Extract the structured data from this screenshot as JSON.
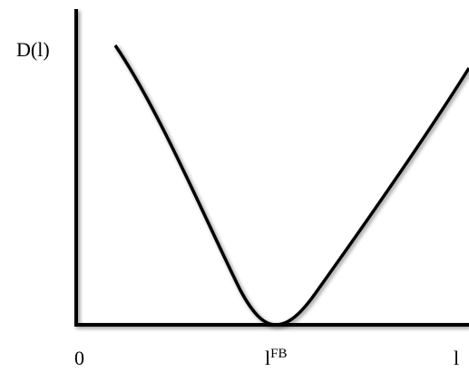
{
  "y_axis": {
    "label": "D(l)"
  },
  "x_axis": {
    "origin_label": "0",
    "end_label": "l",
    "marked_point": {
      "base": "l",
      "superscript": "FB"
    }
  }
}
